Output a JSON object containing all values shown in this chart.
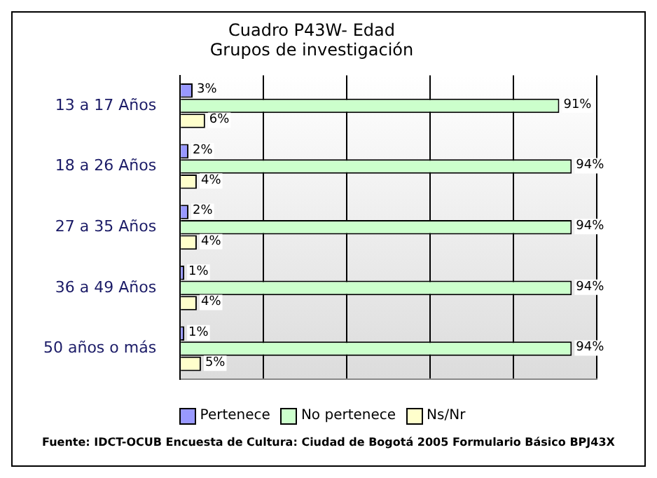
{
  "chart_data": {
    "type": "bar",
    "orientation": "horizontal",
    "title": "Cuadro P43W- Edad",
    "subtitle": "Grupos de investigación",
    "categories": [
      "13 a 17 Años",
      "18 a 26 Años",
      "27 a 35 Años",
      "36 a 49 Años",
      "50 años o más"
    ],
    "series": [
      {
        "name": "Pertenece",
        "color": "#9999ff",
        "values": [
          3,
          2,
          2,
          1,
          1
        ],
        "value_labels": [
          "3%",
          "2%",
          "2%",
          "1%",
          "1%"
        ]
      },
      {
        "name": "No pertenece",
        "color": "#ccffcc",
        "values": [
          91,
          94,
          94,
          94,
          94
        ],
        "value_labels": [
          "91%",
          "94%",
          "94%",
          "94%",
          "94%"
        ]
      },
      {
        "name": "Ns/Nr",
        "color": "#ffffcc",
        "values": [
          6,
          4,
          4,
          4,
          5
        ],
        "value_labels": [
          "6%",
          "4%",
          "4%",
          "4%",
          "5%"
        ]
      }
    ],
    "xlim": [
      0,
      100
    ],
    "xticks": [
      0,
      20,
      40,
      60,
      80,
      100
    ],
    "tick_labels": "y",
    "grid": "x",
    "legend": "bottom",
    "annotations": [
      "Fuente: IDCT-OCUB Encuesta de Cultura: Ciudad de Bogotá 2005 Formulario Básico BPJ43X"
    ]
  }
}
